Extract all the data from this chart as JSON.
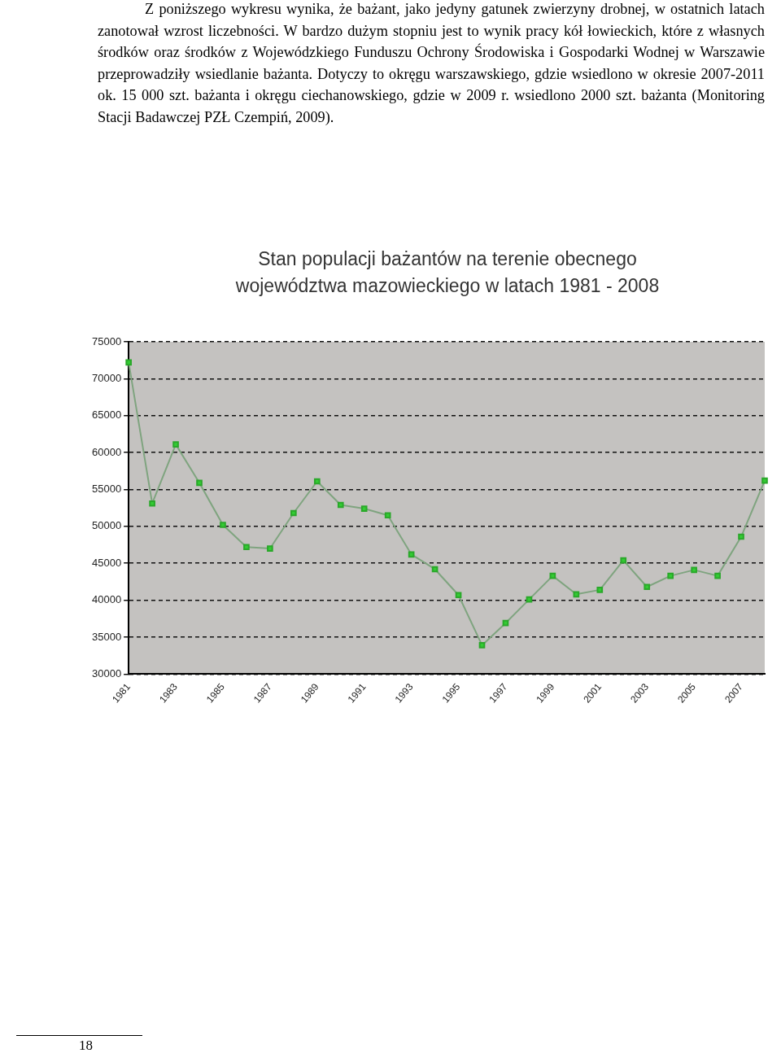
{
  "chart_data": {
    "type": "line",
    "title": "Stan populacji bażantów na terenie obecnego województwa mazowieckiego w latach 1981 - 2008",
    "annotations": [
      "Z poniższego wykresu wynika, że bażant, jako jedyny gatunek zwierzyny drobnej, w ostatnich latach zanotował wzrost liczebności. W bardzo dużym stopniu jest to wynik pracy kół łowieckich, które z własnych środków oraz środków z Wojewódzkiego Funduszu Ochrony Środowiska i Gospodarki Wodnej w Warszawie przeprowadziły wsiedlanie bażanta. Dotyczy to okręgu warszawskiego, gdzie wsiedlono w okresie 2007-2011 ok. 15 000 szt. bażanta i okręgu ciechanowskiego, gdzie w 2009 r. wsiedlono 2000 szt. bażanta (Monitoring Stacji Badawczej PZŁ Czempiń, 2009).",
      "18"
    ],
    "categories": [
      "1981",
      null,
      "1983",
      null,
      "1985",
      null,
      "1987",
      null,
      "1989",
      null,
      "1991",
      null,
      "1993",
      null,
      "1995",
      null,
      "1997",
      null,
      "1999",
      null,
      "2001",
      null,
      "2003",
      null,
      "2005",
      null,
      "2007",
      null
    ],
    "series": [
      {
        "color": "#7fa47f",
        "values": [
          72200,
          53100,
          61100,
          55900,
          50200,
          47200,
          47000,
          51800,
          56100,
          52900,
          52400,
          51500,
          46200,
          44200,
          40700,
          33900,
          36900,
          40100,
          43300,
          40800,
          41400,
          45400,
          41800,
          43300,
          44100,
          43300,
          48600,
          56200
        ]
      }
    ],
    "ylim": [
      30000,
      75000
    ],
    "yticks": [
      30000,
      35000,
      40000,
      45000,
      50000,
      55000,
      60000,
      65000,
      70000,
      75000
    ],
    "grid": "y",
    "marker": "square",
    "legend": false
  }
}
